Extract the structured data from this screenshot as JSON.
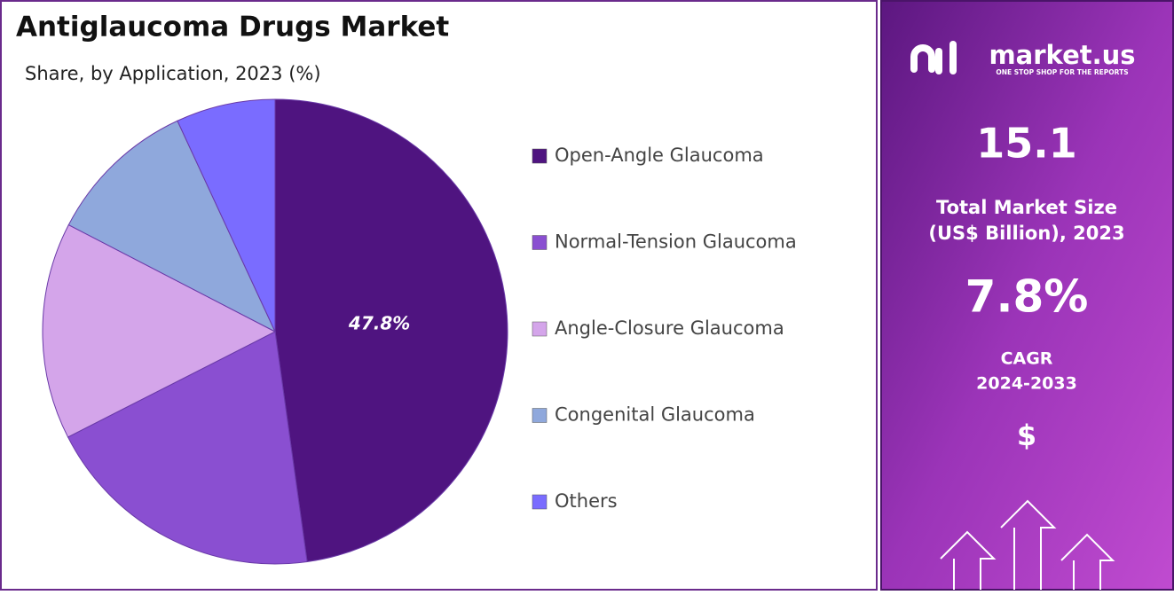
{
  "chart_data": {
    "type": "pie",
    "title": "Antiglaucoma Drugs Market",
    "subtitle": "Share, by Application, 2023 (%)",
    "categories": [
      "Open-Angle Glaucoma",
      "Normal-Tension Glaucoma",
      "Angle-Closure Glaucoma",
      "Congenital Glaucoma",
      "Others"
    ],
    "values": [
      47.8,
      19.7,
      15.1,
      10.5,
      6.9
    ],
    "value_labels": [
      "47.8%",
      null,
      null,
      null,
      null
    ],
    "colors": [
      "#4f1480",
      "#8a4fd1",
      "#d4a5ea",
      "#8fa8dc",
      "#7a6cff"
    ],
    "legend": "right"
  },
  "sidebar": {
    "brand": "market.us",
    "tagline": "ONE STOP SHOP FOR THE REPORTS",
    "market_size": "15.1",
    "market_size_label": [
      "Total Market Size",
      "(US$ Billion), 2023"
    ],
    "cagr": "7.8%",
    "cagr_label": [
      "CAGR",
      "2024-2033"
    ],
    "currency_icon": "$"
  }
}
